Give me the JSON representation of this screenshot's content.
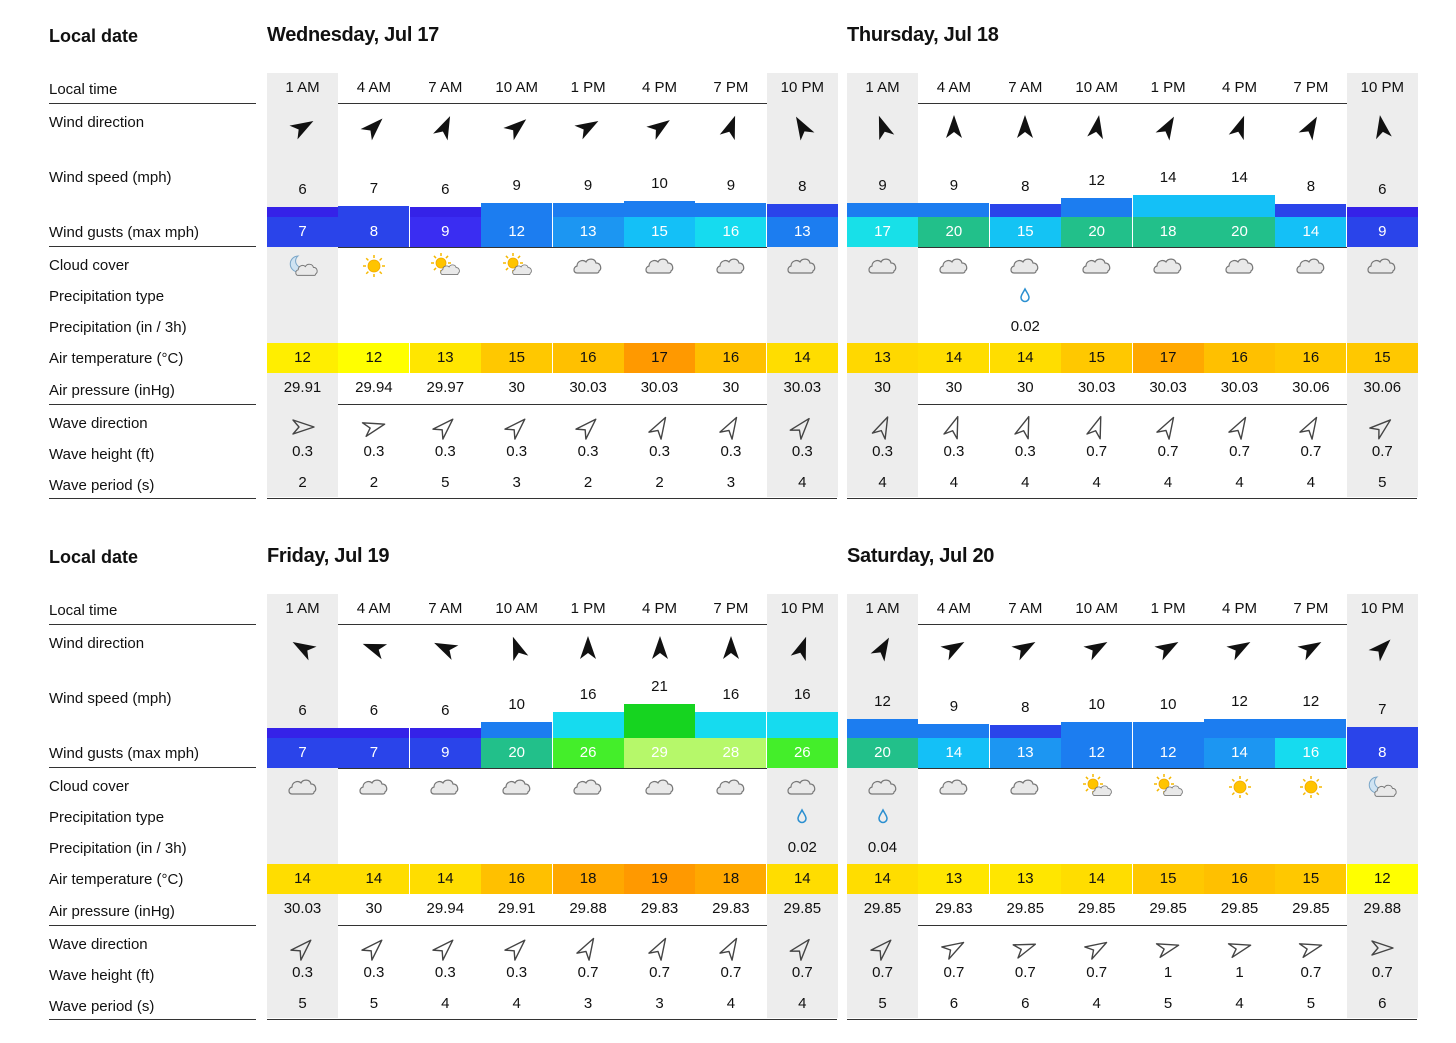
{
  "labels": {
    "local_date": "Local date",
    "local_time": "Local time",
    "wind_direction": "Wind direction",
    "wind_speed": "Wind speed (mph)",
    "wind_gusts": "Wind gusts (max mph)",
    "cloud_cover": "Cloud cover",
    "precipitation_type": "Precipitation type",
    "precipitation": "Precipitation (in / 3h)",
    "air_temperature": "Air temperature (°C)",
    "air_pressure": "Air pressure (inHg)",
    "wave_direction": "Wave direction",
    "wave_height": "Wave height (ft)",
    "wave_period": "Wave period (s)"
  },
  "days": [
    {
      "title": "Wednesday, Jul 17",
      "times": [
        "1 AM",
        "4 AM",
        "7 AM",
        "10 AM",
        "1 PM",
        "4 PM",
        "7 PM",
        "10 PM"
      ],
      "wind_dir_deg": [
        60,
        45,
        25,
        50,
        60,
        55,
        20,
        330
      ],
      "wind_speed": [
        "6",
        "7",
        "6",
        "9",
        "9",
        "10",
        "9",
        "8"
      ],
      "wind_speed_num": [
        6,
        7,
        6,
        9,
        9,
        10,
        9,
        8
      ],
      "gusts": [
        "7",
        "8",
        "9",
        "12",
        "13",
        "15",
        "16",
        "13"
      ],
      "gust_colors": [
        "#2a44ea",
        "#2a44ea",
        "#3a2df2",
        "#1c7df0",
        "#1c96f2",
        "#14c0f7",
        "#16dbef",
        "#1c7df0"
      ],
      "cloud": [
        "night-partly-cloudy-icon",
        "sun-icon",
        "sun-cloud-icon",
        "sun-cloud-icon",
        "cloud-icon",
        "cloud-icon",
        "cloud-icon",
        "cloud-icon"
      ],
      "precip_type": [
        "",
        "",
        "",
        "",
        "",
        "",
        "",
        ""
      ],
      "precip": [
        "",
        "",
        "",
        "",
        "",
        "",
        "",
        ""
      ],
      "temp": [
        "12",
        "12",
        "13",
        "15",
        "16",
        "17",
        "16",
        "14"
      ],
      "temp_colors": [
        "#ffee00",
        "#ffff00",
        "#ffe600",
        "#ffc800",
        "#ffc000",
        "#ff9900",
        "#ffc000",
        "#ffdd00"
      ],
      "pressure": [
        "29.91",
        "29.94",
        "29.97",
        "30",
        "30.03",
        "30.03",
        "30",
        "30.03"
      ],
      "wave_dir_deg": [
        90,
        75,
        45,
        45,
        45,
        30,
        30,
        40
      ],
      "wave_height": [
        "0.3",
        "0.3",
        "0.3",
        "0.3",
        "0.3",
        "0.3",
        "0.3",
        "0.3"
      ],
      "wave_period": [
        "2",
        "2",
        "5",
        "3",
        "2",
        "2",
        "3",
        "4"
      ]
    },
    {
      "title": "Thursday, Jul 18",
      "times": [
        "1 AM",
        "4 AM",
        "7 AM",
        "10 AM",
        "1 PM",
        "4 PM",
        "7 PM",
        "10 PM"
      ],
      "wind_dir_deg": [
        340,
        0,
        0,
        10,
        30,
        20,
        30,
        350
      ],
      "wind_speed": [
        "9",
        "9",
        "8",
        "12",
        "14",
        "14",
        "8",
        "6"
      ],
      "wind_speed_num": [
        9,
        9,
        8,
        12,
        14,
        14,
        8,
        6
      ],
      "gusts": [
        "17",
        "20",
        "15",
        "20",
        "18",
        "20",
        "14",
        "9"
      ],
      "gust_colors": [
        "#18e0e8",
        "#22c08a",
        "#14c3f4",
        "#22c08a",
        "#22c08a",
        "#22c08a",
        "#14c0f7",
        "#2a44ea"
      ],
      "cloud": [
        "cloud-icon",
        "cloud-icon",
        "cloud-icon",
        "cloud-icon",
        "cloud-icon",
        "cloud-icon",
        "cloud-icon",
        "cloud-icon"
      ],
      "precip_type": [
        "",
        "",
        "rain-drop-icon",
        "",
        "",
        "",
        "",
        ""
      ],
      "precip": [
        "",
        "",
        "0.02",
        "",
        "",
        "",
        "",
        ""
      ],
      "temp": [
        "13",
        "14",
        "14",
        "15",
        "17",
        "16",
        "16",
        "15"
      ],
      "temp_colors": [
        "#ffd800",
        "#ffdd00",
        "#ffdd00",
        "#ffc800",
        "#ffa800",
        "#ffc000",
        "#ffc800",
        "#ffc800"
      ],
      "pressure": [
        "30",
        "30",
        "30",
        "30.03",
        "30.03",
        "30.03",
        "30.06",
        "30.06"
      ],
      "wave_dir_deg": [
        25,
        20,
        20,
        20,
        30,
        30,
        30,
        50
      ],
      "wave_height": [
        "0.3",
        "0.3",
        "0.3",
        "0.7",
        "0.7",
        "0.7",
        "0.7",
        "0.7"
      ],
      "wave_period": [
        "4",
        "4",
        "4",
        "4",
        "4",
        "4",
        "4",
        "5"
      ]
    },
    {
      "title": "Friday, Jul 19",
      "times": [
        "1 AM",
        "4 AM",
        "7 AM",
        "10 AM",
        "1 PM",
        "4 PM",
        "7 PM",
        "10 PM"
      ],
      "wind_dir_deg": [
        300,
        290,
        295,
        340,
        0,
        0,
        0,
        20
      ],
      "wind_speed": [
        "6",
        "6",
        "6",
        "10",
        "16",
        "21",
        "16",
        "16"
      ],
      "wind_speed_num": [
        6,
        6,
        6,
        10,
        16,
        21,
        16,
        16
      ],
      "gusts": [
        "7",
        "7",
        "9",
        "20",
        "26",
        "29",
        "28",
        "26"
      ],
      "gust_colors": [
        "#2a44ea",
        "#2a44ea",
        "#2a44ea",
        "#22c08a",
        "#44ee2a",
        "#b6f86a",
        "#b6f86a",
        "#44ee2a"
      ],
      "cloud": [
        "cloud-icon",
        "cloud-icon",
        "cloud-icon",
        "cloud-icon",
        "cloud-icon",
        "cloud-icon",
        "cloud-icon",
        "cloud-icon"
      ],
      "precip_type": [
        "",
        "",
        "",
        "",
        "",
        "",
        "",
        "rain-drop-icon"
      ],
      "precip": [
        "",
        "",
        "",
        "",
        "",
        "",
        "",
        "0.02"
      ],
      "temp": [
        "14",
        "14",
        "14",
        "16",
        "18",
        "19",
        "18",
        "14"
      ],
      "temp_colors": [
        "#ffdd00",
        "#ffdd00",
        "#ffdd00",
        "#ffc000",
        "#ffa800",
        "#ff9900",
        "#ffa800",
        "#ffdd00"
      ],
      "pressure": [
        "30.03",
        "30",
        "29.94",
        "29.91",
        "29.88",
        "29.83",
        "29.83",
        "29.85"
      ],
      "wave_dir_deg": [
        45,
        45,
        45,
        45,
        30,
        30,
        30,
        40
      ],
      "wave_height": [
        "0.3",
        "0.3",
        "0.3",
        "0.3",
        "0.7",
        "0.7",
        "0.7",
        "0.7"
      ],
      "wave_period": [
        "5",
        "5",
        "4",
        "4",
        "3",
        "3",
        "4",
        "4"
      ]
    },
    {
      "title": "Saturday, Jul 20",
      "times": [
        "1 AM",
        "4 AM",
        "7 AM",
        "10 AM",
        "1 PM",
        "4 PM",
        "7 PM",
        "10 PM"
      ],
      "wind_dir_deg": [
        30,
        60,
        60,
        60,
        60,
        60,
        60,
        45
      ],
      "wind_speed": [
        "12",
        "9",
        "8",
        "10",
        "10",
        "12",
        "12",
        "7"
      ],
      "wind_speed_num": [
        12,
        9,
        8,
        10,
        10,
        12,
        12,
        7
      ],
      "gusts": [
        "20",
        "14",
        "13",
        "12",
        "12",
        "14",
        "16",
        "8"
      ],
      "gust_colors": [
        "#22c08a",
        "#14c0f7",
        "#1c96f2",
        "#1c7df0",
        "#1c7df0",
        "#1c96f2",
        "#16dbef",
        "#2a44ea"
      ],
      "cloud": [
        "cloud-icon",
        "cloud-icon",
        "cloud-icon",
        "sun-cloud-icon",
        "sun-cloud-icon",
        "sun-icon",
        "sun-icon",
        "night-partly-cloudy-icon"
      ],
      "precip_type": [
        "rain-drop-icon",
        "",
        "",
        "",
        "",
        "",
        "",
        ""
      ],
      "precip": [
        "0.04",
        "",
        "",
        "",
        "",
        "",
        "",
        ""
      ],
      "temp": [
        "14",
        "13",
        "13",
        "14",
        "15",
        "16",
        "15",
        "12"
      ],
      "temp_colors": [
        "#ffdd00",
        "#ffe600",
        "#ffe600",
        "#ffdd00",
        "#ffc800",
        "#ffc000",
        "#ffc800",
        "#ffff00"
      ],
      "pressure": [
        "29.85",
        "29.83",
        "29.85",
        "29.85",
        "29.85",
        "29.85",
        "29.85",
        "29.88"
      ],
      "wave_dir_deg": [
        45,
        60,
        70,
        60,
        75,
        75,
        75,
        90
      ],
      "wave_height": [
        "0.7",
        "0.7",
        "0.7",
        "0.7",
        "1",
        "1",
        "0.7",
        "0.7"
      ],
      "wave_period": [
        "5",
        "6",
        "6",
        "4",
        "5",
        "4",
        "5",
        "6"
      ]
    }
  ]
}
